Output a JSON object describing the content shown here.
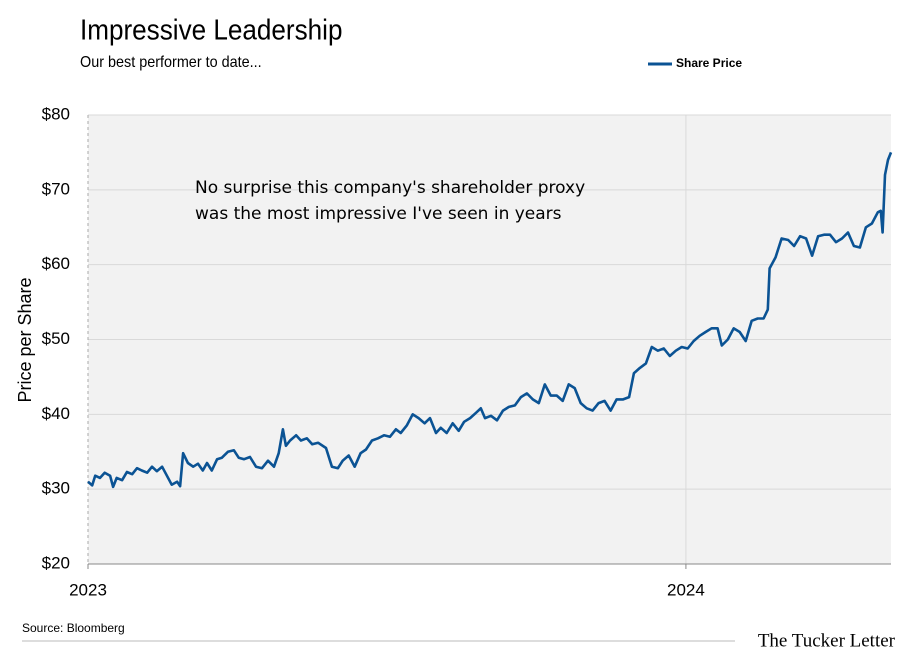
{
  "chart_data": {
    "type": "line",
    "title": "Impressive Leadership",
    "subtitle": "Our best performer to date...",
    "y_label": "Price per Share",
    "annotation": [
      "No surprise this company's shareholder proxy",
      "was the most impressive I've seen in years"
    ],
    "source": "Source: Bloomberg",
    "brand": "The Tucker Letter",
    "legend": "top-right",
    "grid": true,
    "xlim": [
      2023,
      2024.343
    ],
    "xticks": [
      2023,
      2024
    ],
    "ylim": [
      20,
      80
    ],
    "yticks": [
      {
        "value": 20,
        "label": "$20"
      },
      {
        "value": 30,
        "label": "$30"
      },
      {
        "value": 40,
        "label": "$40"
      },
      {
        "value": 50,
        "label": "$50"
      },
      {
        "value": 60,
        "label": "$60"
      },
      {
        "value": 70,
        "label": "$70"
      },
      {
        "value": 80,
        "label": "$80"
      }
    ],
    "x": [
      2023.0,
      2023.007,
      2023.012,
      2023.02,
      2023.028,
      2023.037,
      2023.042,
      2023.048,
      2023.057,
      2023.065,
      2023.074,
      2023.082,
      2023.09,
      2023.099,
      2023.107,
      2023.115,
      2023.124,
      2023.132,
      2023.14,
      2023.149,
      2023.154,
      2023.159,
      2023.167,
      2023.176,
      2023.184,
      2023.192,
      2023.199,
      2023.207,
      2023.216,
      2023.224,
      2023.234,
      2023.244,
      2023.252,
      2023.261,
      2023.271,
      2023.281,
      2023.291,
      2023.301,
      2023.311,
      2023.319,
      2023.326,
      2023.331,
      2023.338,
      2023.348,
      2023.356,
      2023.366,
      2023.375,
      2023.385,
      2023.398,
      2023.408,
      2023.418,
      2023.426,
      2023.436,
      2023.446,
      2023.456,
      2023.465,
      2023.475,
      2023.485,
      2023.495,
      2023.505,
      2023.515,
      2023.523,
      2023.533,
      2023.543,
      2023.553,
      2023.563,
      2023.572,
      2023.582,
      2023.59,
      2023.6,
      2023.61,
      2023.62,
      2023.629,
      2023.639,
      2023.649,
      2023.657,
      2023.664,
      2023.674,
      2023.684,
      2023.694,
      2023.704,
      2023.714,
      2023.724,
      2023.734,
      2023.744,
      2023.754,
      2023.764,
      2023.774,
      2023.784,
      2023.794,
      2023.804,
      2023.814,
      2023.824,
      2023.834,
      2023.844,
      2023.854,
      2023.864,
      2023.874,
      2023.884,
      2023.895,
      2023.905,
      2023.913,
      2023.923,
      2023.933,
      2023.943,
      2023.953,
      2023.963,
      2023.973,
      2023.983,
      2023.993,
      2024.003,
      2024.013,
      2024.023,
      2024.033,
      2024.043,
      2024.053,
      2024.06,
      2024.07,
      2024.08,
      2024.09,
      2024.1,
      2024.11,
      2024.12,
      2024.13,
      2024.137,
      2024.14,
      2024.15,
      2024.16,
      2024.171,
      2024.181,
      2024.191,
      2024.201,
      2024.211,
      2024.221,
      2024.231,
      2024.241,
      2024.251,
      2024.261,
      2024.271,
      2024.281,
      2024.291,
      2024.301,
      2024.311,
      2024.321,
      2024.326,
      2024.329,
      2024.333,
      2024.338,
      2024.343
    ],
    "series": [
      {
        "name": "Share Price",
        "color": "#0b5394",
        "values": [
          31,
          30.5,
          31.8,
          31.5,
          32.2,
          31.8,
          30.3,
          31.5,
          31.2,
          32.3,
          32,
          32.8,
          32.5,
          32.2,
          33,
          32.4,
          33,
          31.8,
          30.6,
          31,
          30.4,
          34.8,
          33.5,
          33,
          33.4,
          32.5,
          33.5,
          32.5,
          34,
          34.2,
          35,
          35.2,
          34.2,
          34,
          34.3,
          33,
          32.8,
          33.8,
          33,
          34.8,
          38,
          35.8,
          36.5,
          37.2,
          36.5,
          36.8,
          36,
          36.2,
          35.5,
          33,
          32.8,
          33.8,
          34.5,
          33,
          34.8,
          35.3,
          36.5,
          36.8,
          37.2,
          37,
          38,
          37.5,
          38.5,
          40,
          39.5,
          38.8,
          39.5,
          37.5,
          38.2,
          37.5,
          38.8,
          37.8,
          39,
          39.5,
          40.2,
          40.8,
          39.5,
          39.8,
          39.2,
          40.5,
          41,
          41.2,
          42.3,
          42.8,
          42,
          41.5,
          44,
          42.5,
          42.5,
          41.8,
          44,
          43.5,
          41.5,
          40.8,
          40.5,
          41.5,
          41.8,
          40.5,
          42,
          42,
          42.3,
          45.5,
          46.2,
          46.8,
          49,
          48.5,
          48.8,
          47.8,
          48.5,
          49,
          48.8,
          49.8,
          50.5,
          51,
          51.5,
          51.5,
          49.2,
          50,
          51.5,
          51,
          49.8,
          52.5,
          52.8,
          52.8,
          54,
          59.5,
          61,
          63.5,
          63.3,
          62.5,
          63.8,
          63.5,
          61.2,
          63.8,
          64,
          64,
          63,
          63.5,
          64.3,
          62.5,
          62.3,
          65,
          65.5,
          67,
          67.2,
          64.3,
          72,
          74,
          75
        ]
      }
    ]
  }
}
